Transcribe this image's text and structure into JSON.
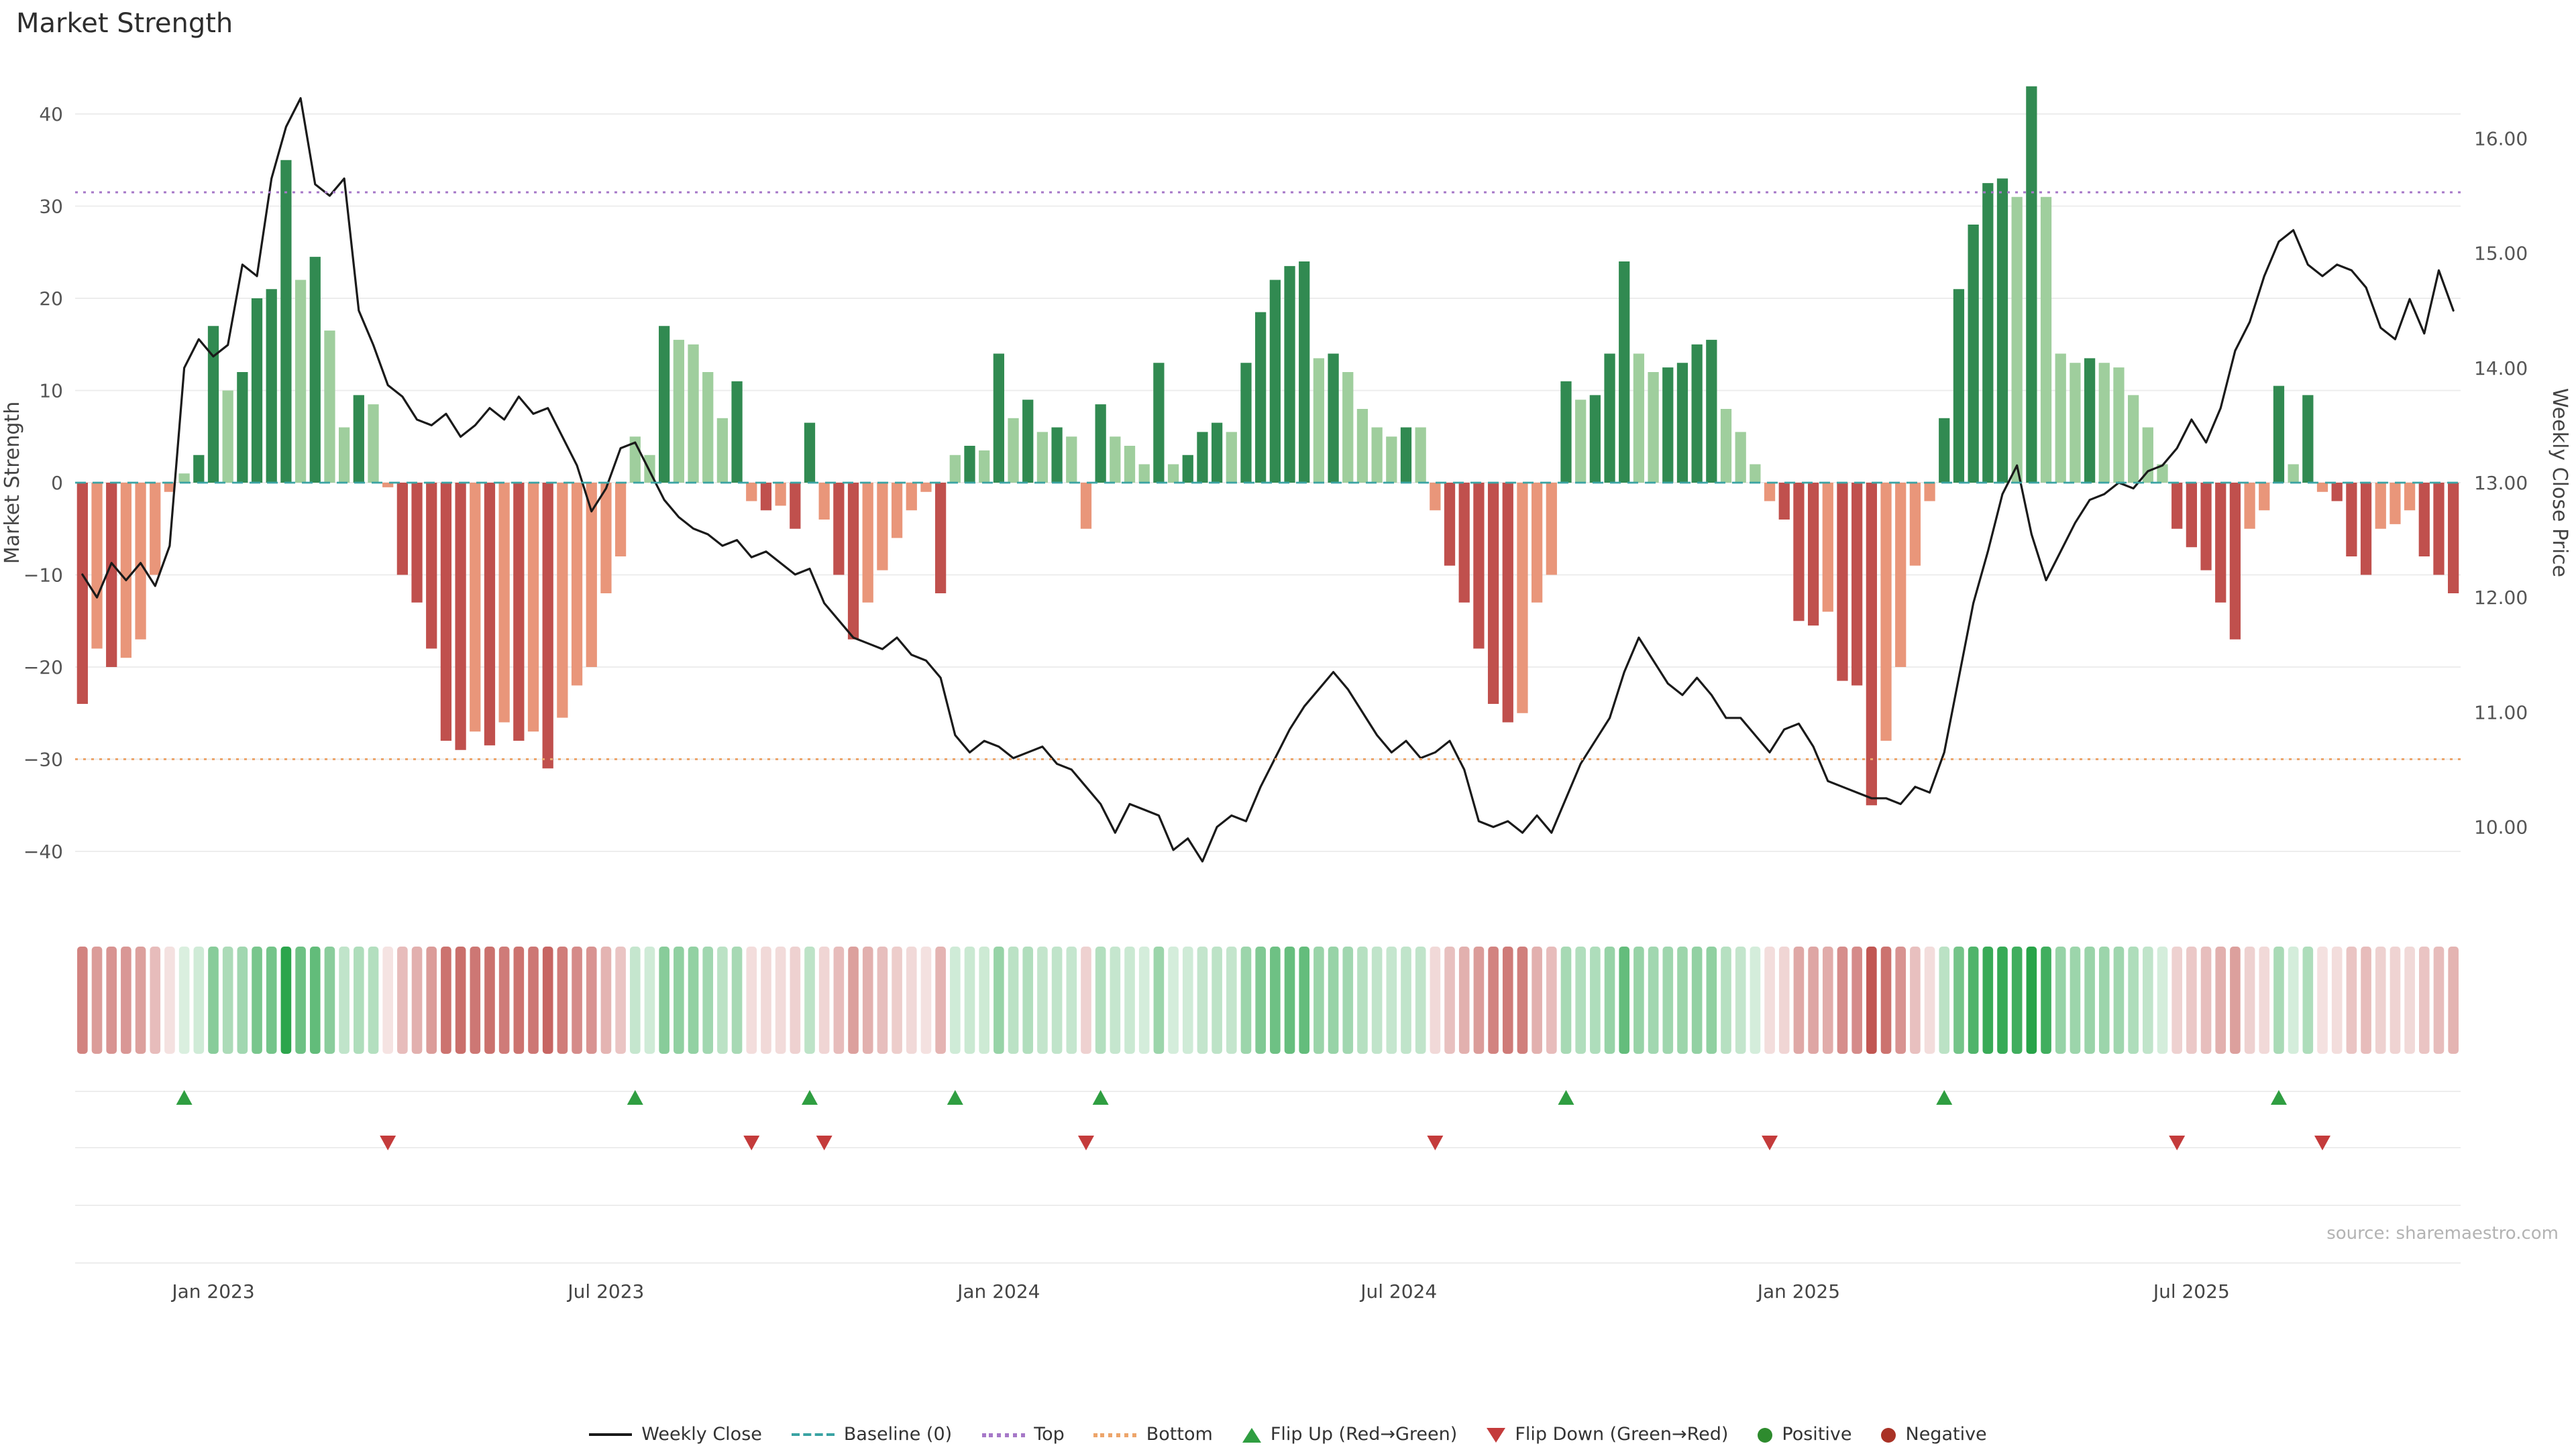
{
  "title": "Market Strength",
  "source": "source: sharemaestro.com",
  "colors": {
    "line": "#1a1a1a",
    "baseline": "#3aa3a3",
    "top": "#a678c8",
    "bottom": "#eda56b",
    "bar_pos_strong": "#318a51",
    "bar_pos_weak": "#9fce9d",
    "bar_neg_strong": "#c0504d",
    "bar_neg_weak": "#e9967a",
    "heat_pos": "#27a348",
    "heat_neg": "#c0524e",
    "flip_up": "#2f9e41",
    "flip_down": "#c43b3b",
    "grid": "#ededed",
    "axis_text": "#555555",
    "tick_text": "#444444"
  },
  "chart_data": {
    "type": "bar",
    "subtype": "weekly strength bars + weekly close price line overlay + heatmap strip + flip markers",
    "title": "Market Strength",
    "x": {
      "unit": "weeks",
      "tick_labels": [
        "Jan 2023",
        "Jul 2023",
        "Jan 2024",
        "Jul 2024",
        "Jan 2025",
        "Jul 2025"
      ],
      "tick_indices": [
        9,
        36,
        63,
        90.5,
        118,
        145
      ]
    },
    "left_axis": {
      "title": "Market Strength",
      "tick_values": [
        40,
        30,
        20,
        10,
        0,
        -10,
        -20,
        -30,
        -40
      ],
      "tick_labels": [
        "40",
        "30",
        "20",
        "10",
        "0",
        "−10",
        "−20",
        "−30",
        "−40"
      ]
    },
    "right_axis": {
      "title": "Weekly Close Price",
      "tick_values": [
        16,
        15,
        14,
        13,
        12,
        11,
        10
      ],
      "tick_labels": [
        "16.00",
        "15.00",
        "14.00",
        "13.00",
        "12.00",
        "11.00",
        "10.00"
      ]
    },
    "thresholds": {
      "baseline": {
        "label": "Baseline (0)",
        "value": 0
      },
      "top": {
        "label": "Top",
        "value": 31.5
      },
      "bottom": {
        "label": "Bottom",
        "value": -30
      }
    },
    "series": {
      "strength": {
        "name": "Market Strength",
        "type": "bar",
        "values": [
          -24,
          -18,
          -20,
          -19,
          -17,
          -10,
          -1,
          1,
          3,
          17,
          10,
          12,
          20,
          21,
          35,
          22,
          24.5,
          16.5,
          6,
          9.5,
          8.5,
          -0.5,
          -10,
          -13,
          -18,
          -28,
          -29,
          -27,
          -28.5,
          -26,
          -28,
          -27,
          -31,
          -25.5,
          -22,
          -20,
          -12,
          -8,
          5,
          3,
          17,
          15.5,
          15,
          12,
          7,
          11,
          -2,
          -3,
          -2.5,
          -5,
          6.5,
          -4,
          -10,
          -17,
          -13,
          -9.5,
          -6,
          -3,
          -1,
          -12,
          3,
          4,
          3.5,
          14,
          7,
          9,
          5.5,
          6,
          5,
          -5,
          8.5,
          5,
          4,
          2,
          13,
          2,
          3,
          5.5,
          6.5,
          5.5,
          13,
          18.5,
          22,
          23.5,
          24,
          13.5,
          14,
          12,
          8,
          6,
          5,
          6,
          6,
          -3,
          -9,
          -13,
          -18,
          -24,
          -26,
          -25,
          -13,
          -10,
          11,
          9,
          9.5,
          14,
          24,
          14,
          12,
          12.5,
          13,
          15,
          15.5,
          8,
          5.5,
          2,
          -2,
          -4,
          -15,
          -15.5,
          -14,
          -21.5,
          -22,
          -35,
          -28,
          -20,
          -9,
          -2,
          7,
          21,
          28,
          32.5,
          33,
          31,
          43,
          31,
          14,
          13,
          13.5,
          13,
          12.5,
          9.5,
          6,
          2,
          -5,
          -7,
          -9.5,
          -13,
          -17,
          -5,
          -3,
          10.5,
          2,
          9.5,
          -1,
          -2,
          -8,
          -10,
          -5,
          -4.5,
          -3,
          -8,
          -10,
          -12
        ]
      },
      "weekly_close": {
        "name": "Weekly Close",
        "type": "line",
        "values": [
          12.2,
          12.0,
          12.3,
          12.15,
          12.3,
          12.1,
          12.45,
          14.0,
          14.25,
          14.1,
          14.2,
          14.9,
          14.8,
          15.65,
          16.1,
          16.35,
          15.6,
          15.5,
          15.65,
          14.5,
          14.2,
          13.85,
          13.75,
          13.55,
          13.5,
          13.6,
          13.4,
          13.5,
          13.65,
          13.55,
          13.75,
          13.6,
          13.65,
          13.4,
          13.15,
          12.75,
          12.95,
          13.3,
          13.35,
          13.1,
          12.85,
          12.7,
          12.6,
          12.55,
          12.45,
          12.5,
          12.35,
          12.4,
          12.3,
          12.2,
          12.25,
          11.95,
          11.8,
          11.65,
          11.6,
          11.55,
          11.65,
          11.5,
          11.45,
          11.3,
          10.8,
          10.65,
          10.75,
          10.7,
          10.6,
          10.65,
          10.7,
          10.55,
          10.5,
          10.35,
          10.2,
          9.95,
          10.2,
          10.15,
          10.1,
          9.8,
          9.9,
          9.7,
          10.0,
          10.1,
          10.05,
          10.35,
          10.6,
          10.85,
          11.05,
          11.2,
          11.35,
          11.2,
          11.0,
          10.8,
          10.65,
          10.75,
          10.6,
          10.65,
          10.75,
          10.5,
          10.05,
          10.0,
          10.05,
          9.95,
          10.1,
          9.95,
          10.25,
          10.55,
          10.75,
          10.95,
          11.35,
          11.65,
          11.45,
          11.25,
          11.15,
          11.3,
          11.15,
          10.95,
          10.95,
          10.8,
          10.65,
          10.85,
          10.9,
          10.7,
          10.4,
          10.35,
          10.3,
          10.25,
          10.25,
          10.2,
          10.35,
          10.3,
          10.65,
          11.3,
          11.95,
          12.4,
          12.9,
          13.15,
          12.55,
          12.15,
          12.4,
          12.65,
          12.85,
          12.9,
          13.0,
          12.95,
          13.1,
          13.15,
          13.3,
          13.55,
          13.35,
          13.65,
          14.15,
          14.4,
          14.8,
          15.1,
          15.2,
          14.9,
          14.8,
          14.9,
          14.85,
          14.7,
          14.35,
          14.25,
          14.6,
          14.3,
          14.85,
          14.5
        ]
      }
    },
    "flips": {
      "up_indices": [
        7,
        38,
        50,
        60,
        70,
        102,
        128,
        151
      ],
      "down_indices": [
        21,
        46,
        51,
        69,
        93,
        116,
        144,
        154
      ]
    }
  },
  "legend": {
    "items": [
      {
        "label": "Weekly Close",
        "swatch": "line",
        "color": "#1a1a1a",
        "icon_name": "weekly-close-line-swatch"
      },
      {
        "label": "Baseline (0)",
        "swatch": "dashed",
        "color": "#3aa3a3",
        "icon_name": "baseline-dashed-swatch"
      },
      {
        "label": "Top",
        "swatch": "dotted",
        "color": "#a678c8",
        "icon_name": "top-dotted-swatch"
      },
      {
        "label": "Bottom",
        "swatch": "dotted",
        "color": "#eda56b",
        "icon_name": "bottom-dotted-swatch"
      },
      {
        "label": "Flip Up (Red→Green)",
        "swatch": "triangle-up",
        "color": "#2f9e41",
        "icon_name": "flip-up-triangle-icon"
      },
      {
        "label": "Flip Down (Green→Red)",
        "swatch": "triangle-down",
        "color": "#c43b3b",
        "icon_name": "flip-down-triangle-icon"
      },
      {
        "label": "Positive",
        "swatch": "dot",
        "color": "#2e8b2e",
        "icon_name": "positive-dot-icon"
      },
      {
        "label": "Negative",
        "swatch": "dot",
        "color": "#a93226",
        "icon_name": "negative-dot-icon"
      }
    ]
  }
}
